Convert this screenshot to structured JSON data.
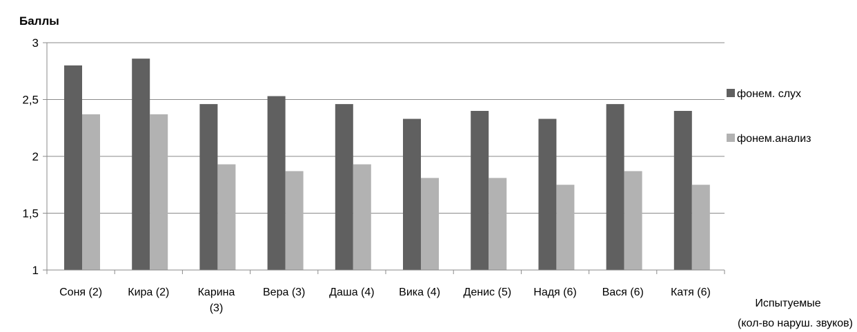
{
  "chart_data": {
    "type": "bar",
    "title": "",
    "ylabel": "Баллы",
    "xlabel": [
      "Испытуемые",
      "(кол-во наруш. звуков)"
    ],
    "ylim": [
      1,
      3
    ],
    "yticks": [
      "1",
      "1,5",
      "2",
      "2,5",
      "3"
    ],
    "ytick_values": [
      1,
      1.5,
      2,
      2.5,
      3
    ],
    "grid": true,
    "legend_position": "right",
    "categories": [
      [
        "Соня (2)"
      ],
      [
        "Кира (2)"
      ],
      [
        "Карина",
        "(3)"
      ],
      [
        "Вера (3)"
      ],
      [
        "Даша (4)"
      ],
      [
        "Вика (4)"
      ],
      [
        "Денис (5)"
      ],
      [
        "Надя (6)"
      ],
      [
        "Вася (6)"
      ],
      [
        "Катя (6)"
      ]
    ],
    "series": [
      {
        "name": "фонем. слух",
        "color": "#606060",
        "values": [
          2.8,
          2.86,
          2.46,
          2.53,
          2.46,
          2.33,
          2.4,
          2.33,
          2.46,
          2.4
        ]
      },
      {
        "name": "фонем.анализ",
        "color": "#b2b2b2",
        "values": [
          2.37,
          2.37,
          1.93,
          1.87,
          1.93,
          1.81,
          1.81,
          1.75,
          1.87,
          1.75
        ]
      }
    ]
  }
}
